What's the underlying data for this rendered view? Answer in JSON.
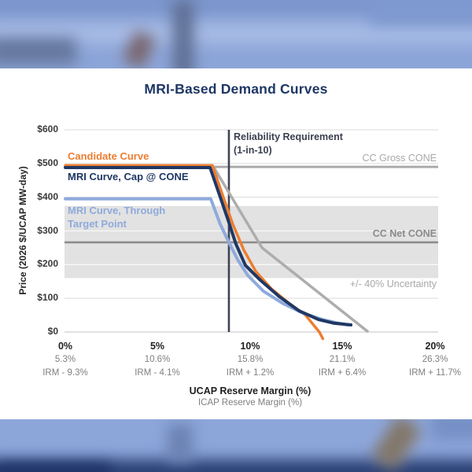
{
  "title": "MRI-Based Demand Curves",
  "y_axis": {
    "title": "Price (2026 $/UCAP MW-day)",
    "ticks": [
      "$600",
      "$500",
      "$400",
      "$300",
      "$200",
      "$100",
      "$0"
    ]
  },
  "x_axis": {
    "title": "UCAP Reserve Margin (%)",
    "subtitle": "ICAP Reserve Margin (%)",
    "ticks": [
      {
        "ucap": "0%",
        "icap": "5.3%",
        "irm": "IRM - 9.3%"
      },
      {
        "ucap": "5%",
        "icap": "10.6%",
        "irm": "IRM - 4.1%"
      },
      {
        "ucap": "10%",
        "icap": "15.8%",
        "irm": "IRM + 1.2%"
      },
      {
        "ucap": "15%",
        "icap": "21.1%",
        "irm": "IRM + 6.4%"
      },
      {
        "ucap": "20%",
        "icap": "26.3%",
        "irm": "IRM + 11.7%"
      }
    ]
  },
  "labels": {
    "candidate": "Candidate Curve",
    "mri_cap": "MRI Curve, Cap @ CONE",
    "mri_target_1": "MRI Curve, Through",
    "mri_target_2": "Target Point",
    "reliability_1": "Reliability Requirement",
    "reliability_2": "(1-in-10)",
    "gross_cone": "CC Gross CONE",
    "net_cone": "CC Net CONE",
    "uncertainty": "+/- 40% Uncertainty"
  },
  "colors": {
    "title": "#1e3765",
    "candidate_curve": "#ed7d31",
    "mri_cap_curve": "#1f3864",
    "mri_target_curve": "#8faadc",
    "gray_reference_curve": "#adadad",
    "gross_cone_line": "#ababab",
    "net_cone_line": "#8c8c8c",
    "uncertainty_band": "#e2e2e2",
    "reliability_line": "#3e4454",
    "gridline": "#dbdbdb"
  },
  "chart_data": {
    "type": "line",
    "title": "MRI-Based Demand Curves",
    "xlabel": "UCAP Reserve Margin (%)",
    "xlabel_secondary": "ICAP Reserve Margin (%)",
    "ylabel": "Price (2026 $/UCAP MW-day)",
    "xlim": [
      0,
      20
    ],
    "ylim": [
      0,
      600
    ],
    "grid": "horizontal only",
    "reliability_requirement_x": 8.85,
    "reference_levels": {
      "cc_gross_cone": 490,
      "cc_net_cone": 266,
      "uncertainty_band": [
        160,
        374
      ]
    },
    "icap_axis_mapping": {
      "ucap_pct": [
        0,
        5,
        10,
        15,
        20
      ],
      "icap_pct": [
        5.3,
        10.6,
        15.8,
        21.1,
        26.3
      ],
      "irm_offset_pct": [
        -9.3,
        -4.1,
        1.2,
        6.4,
        11.7
      ]
    },
    "series": [
      {
        "name": "Gray reference curve (unlabeled)",
        "color": "#adadad",
        "width": 3.5,
        "points": [
          [
            8.04,
            488
          ],
          [
            10.64,
            250
          ],
          [
            16.34,
            2
          ]
        ]
      },
      {
        "name": "Candidate Curve",
        "color": "#ed7d31",
        "width": 3.5,
        "points": [
          [
            0,
            494
          ],
          [
            7.96,
            494
          ],
          [
            8.51,
            406
          ],
          [
            9.06,
            320
          ],
          [
            9.66,
            243
          ],
          [
            10.3,
            180
          ],
          [
            11.15,
            128
          ],
          [
            12.09,
            86
          ],
          [
            12.98,
            51
          ],
          [
            13.74,
            0
          ],
          [
            13.93,
            -20
          ]
        ]
      },
      {
        "name": "MRI Curve, Through Target Point",
        "color": "#8faadc",
        "width": 4,
        "points": [
          [
            0,
            395
          ],
          [
            7.87,
            395
          ],
          [
            8.38,
            320
          ],
          [
            8.85,
            266
          ],
          [
            9.32,
            215
          ],
          [
            9.87,
            168
          ],
          [
            10.72,
            121
          ],
          [
            11.79,
            84
          ],
          [
            12.85,
            56
          ],
          [
            13.91,
            37
          ],
          [
            14.77,
            26
          ],
          [
            15.28,
            21
          ]
        ]
      },
      {
        "name": "MRI Curve, Cap @ CONE",
        "color": "#1f3864",
        "width": 4,
        "points": [
          [
            0,
            488
          ],
          [
            7.83,
            488
          ],
          [
            8.3,
            413
          ],
          [
            8.81,
            332
          ],
          [
            9.23,
            261
          ],
          [
            9.74,
            198
          ],
          [
            10.51,
            156
          ],
          [
            11.57,
            105
          ],
          [
            12.64,
            63
          ],
          [
            13.7,
            37
          ],
          [
            14.55,
            26
          ],
          [
            15.45,
            21
          ]
        ]
      }
    ]
  }
}
